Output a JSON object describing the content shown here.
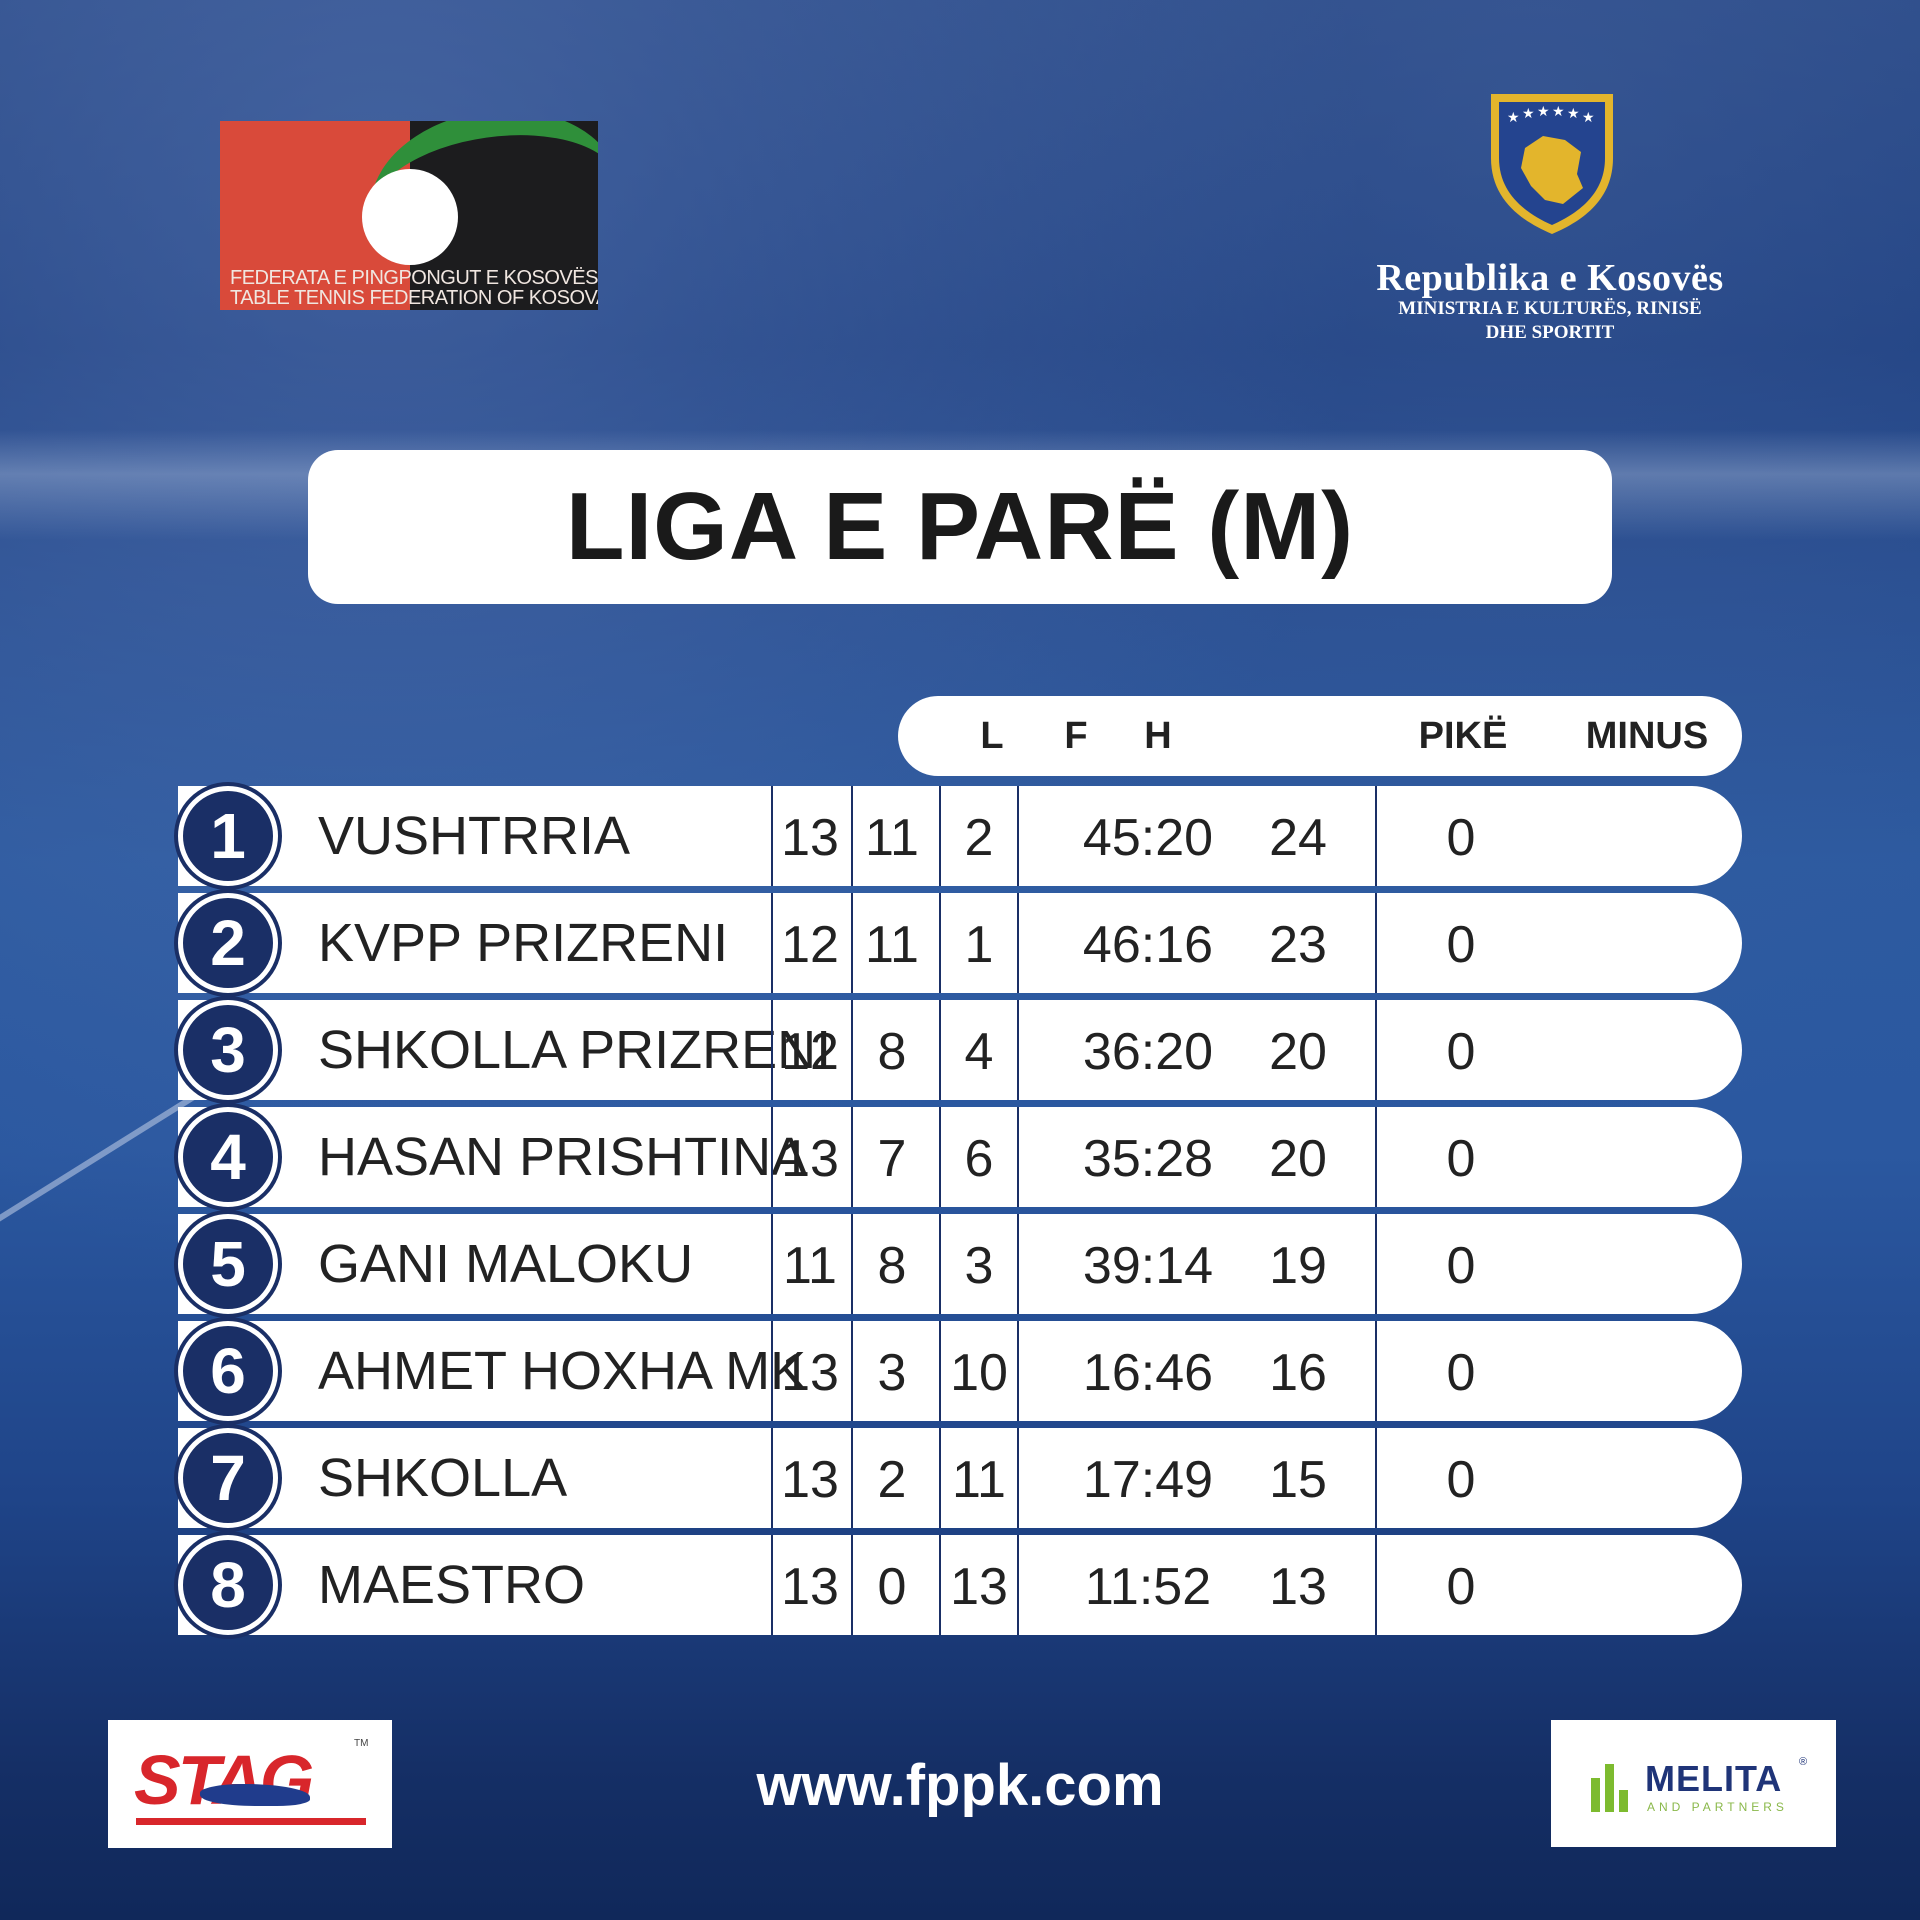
{
  "logos": {
    "federation": {
      "line1": "FEDERATA E PINGPONGUT E KOSOVËS",
      "line2": "TABLE TENNIS FEDERATION OF KOSOVA"
    },
    "ministry": {
      "title": "Republika e Kosovës",
      "subtitle_line1": "MINISTRIA E KULTURËS, RINISË",
      "subtitle_line2": "DHE SPORTIT"
    }
  },
  "title": "LIGA E PARË (M)",
  "table": {
    "headers": {
      "played": "L",
      "won": "F",
      "lost": "H",
      "points": "PIKË",
      "minus": "MINUS"
    },
    "rows": [
      {
        "rank": "1",
        "team": "VUSHTRRIA",
        "played": "13",
        "won": "11",
        "lost": "2",
        "score": "45:20",
        "points": "24",
        "minus": "0"
      },
      {
        "rank": "2",
        "team": "KVPP PRIZRENI",
        "played": "12",
        "won": "11",
        "lost": "1",
        "score": "46:16",
        "points": "23",
        "minus": "0"
      },
      {
        "rank": "3",
        "team": "SHKOLLA PRIZRENI",
        "played": "12",
        "won": "8",
        "lost": "4",
        "score": "36:20",
        "points": "20",
        "minus": "0"
      },
      {
        "rank": "4",
        "team": "HASAN PRISHTINA",
        "played": "13",
        "won": "7",
        "lost": "6",
        "score": "35:28",
        "points": "20",
        "minus": "0"
      },
      {
        "rank": "5",
        "team": "GANI MALOKU",
        "played": "11",
        "won": "8",
        "lost": "3",
        "score": "39:14",
        "points": "19",
        "minus": "0"
      },
      {
        "rank": "6",
        "team": "AHMET HOXHA MK",
        "played": "13",
        "won": "3",
        "lost": "10",
        "score": "16:46",
        "points": "16",
        "minus": "0"
      },
      {
        "rank": "7",
        "team": "SHKOLLA",
        "played": "13",
        "won": "2",
        "lost": "11",
        "score": "17:49",
        "points": "15",
        "minus": "0"
      },
      {
        "rank": "8",
        "team": "MAESTRO",
        "played": "13",
        "won": "0",
        "lost": "13",
        "score": "11:52",
        "points": "13",
        "minus": "0"
      }
    ]
  },
  "footer": {
    "sponsor_left": "STAG",
    "sponsor_left_tm": "TM",
    "url": "www.fppk.com",
    "sponsor_right": "MELITA",
    "sponsor_right_reg": "®",
    "sponsor_right_sub": "AND PARTNERS"
  },
  "colors": {
    "navy": "#1a2f66",
    "brand_red": "#d94a3a",
    "brand_green": "#2f8f3a",
    "stag_red": "#d8262b",
    "melita_green": "#7dbb2f",
    "melita_blue": "#1f3478"
  }
}
